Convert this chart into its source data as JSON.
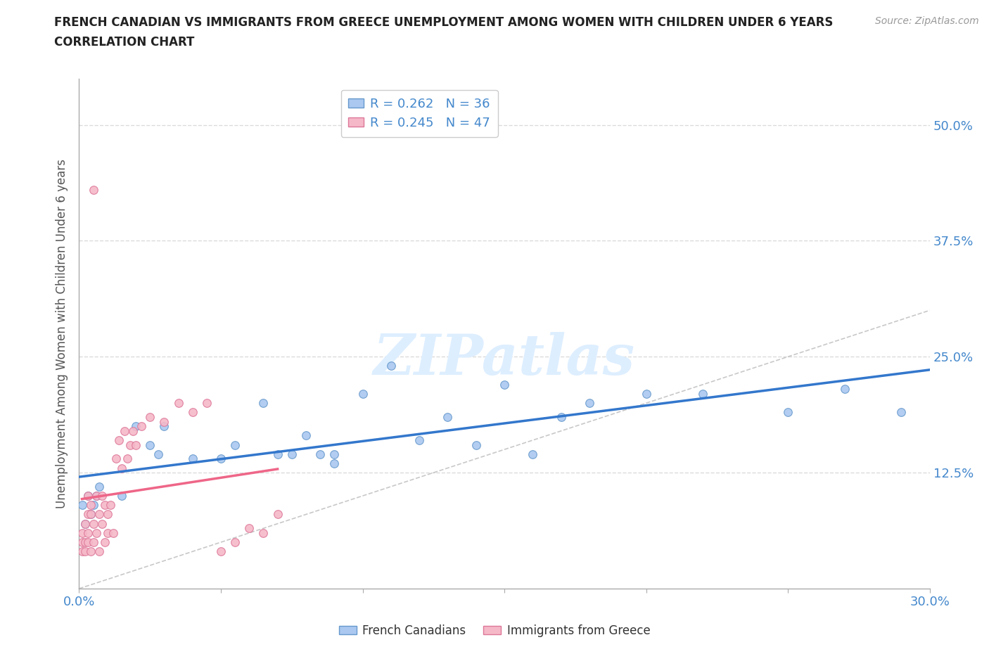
{
  "title_line1": "FRENCH CANADIAN VS IMMIGRANTS FROM GREECE UNEMPLOYMENT AMONG WOMEN WITH CHILDREN UNDER 6 YEARS",
  "title_line2": "CORRELATION CHART",
  "source": "Source: ZipAtlas.com",
  "ylabel": "Unemployment Among Women with Children Under 6 years",
  "xlim": [
    0.0,
    0.3
  ],
  "ylim": [
    0.0,
    0.55
  ],
  "xticks": [
    0.0,
    0.05,
    0.1,
    0.15,
    0.2,
    0.25,
    0.3
  ],
  "xtick_labels": [
    "0.0%",
    "",
    "",
    "",
    "",
    "",
    "30.0%"
  ],
  "ytick_positions": [
    0.0,
    0.125,
    0.25,
    0.375,
    0.5
  ],
  "ytick_labels": [
    "",
    "12.5%",
    "25.0%",
    "37.5%",
    "50.0%"
  ],
  "french_canadians_x": [
    0.001,
    0.002,
    0.003,
    0.004,
    0.005,
    0.006,
    0.007,
    0.015,
    0.02,
    0.025,
    0.028,
    0.03,
    0.04,
    0.05,
    0.055,
    0.065,
    0.07,
    0.075,
    0.08,
    0.085,
    0.09,
    0.1,
    0.11,
    0.13,
    0.15,
    0.17,
    0.2,
    0.22,
    0.09,
    0.12,
    0.14,
    0.16,
    0.18,
    0.25,
    0.27,
    0.29
  ],
  "french_canadians_y": [
    0.09,
    0.07,
    0.1,
    0.08,
    0.09,
    0.1,
    0.11,
    0.1,
    0.175,
    0.155,
    0.145,
    0.175,
    0.14,
    0.14,
    0.155,
    0.2,
    0.145,
    0.145,
    0.165,
    0.145,
    0.145,
    0.21,
    0.24,
    0.185,
    0.22,
    0.185,
    0.21,
    0.21,
    0.135,
    0.16,
    0.155,
    0.145,
    0.2,
    0.19,
    0.215,
    0.19
  ],
  "immigrants_greece_x": [
    0.001,
    0.001,
    0.001,
    0.002,
    0.002,
    0.002,
    0.003,
    0.003,
    0.003,
    0.003,
    0.004,
    0.004,
    0.004,
    0.005,
    0.005,
    0.005,
    0.006,
    0.006,
    0.007,
    0.007,
    0.008,
    0.008,
    0.009,
    0.009,
    0.01,
    0.01,
    0.011,
    0.012,
    0.013,
    0.014,
    0.015,
    0.016,
    0.017,
    0.018,
    0.019,
    0.02,
    0.022,
    0.025,
    0.03,
    0.035,
    0.04,
    0.045,
    0.05,
    0.055,
    0.06,
    0.065,
    0.07
  ],
  "immigrants_greece_y": [
    0.05,
    0.04,
    0.06,
    0.05,
    0.04,
    0.07,
    0.06,
    0.08,
    0.05,
    0.1,
    0.04,
    0.08,
    0.09,
    0.05,
    0.07,
    0.43,
    0.06,
    0.1,
    0.04,
    0.08,
    0.07,
    0.1,
    0.05,
    0.09,
    0.06,
    0.08,
    0.09,
    0.06,
    0.14,
    0.16,
    0.13,
    0.17,
    0.14,
    0.155,
    0.17,
    0.155,
    0.175,
    0.185,
    0.18,
    0.2,
    0.19,
    0.2,
    0.04,
    0.05,
    0.065,
    0.06,
    0.08
  ],
  "fc_color": "#aac8f0",
  "fc_edge_color": "#6699cc",
  "greece_color": "#f5b8c8",
  "greece_edge_color": "#dd7799",
  "fc_trendline_color": "#3377cc",
  "greece_trendline_color": "#ee6688",
  "diagonal_color": "#bbbbbb",
  "R_fc": 0.262,
  "N_fc": 36,
  "R_greece": 0.245,
  "N_greece": 47,
  "background_color": "#ffffff",
  "grid_color": "#cccccc",
  "title_color": "#222222",
  "axis_label_color": "#555555",
  "tick_label_color": "#4488cc",
  "watermark_text": "ZIPatlas",
  "watermark_color": "#ddeeff",
  "marker_size": 70,
  "legend_label1": "French Canadians",
  "legend_label2": "Immigrants from Greece"
}
